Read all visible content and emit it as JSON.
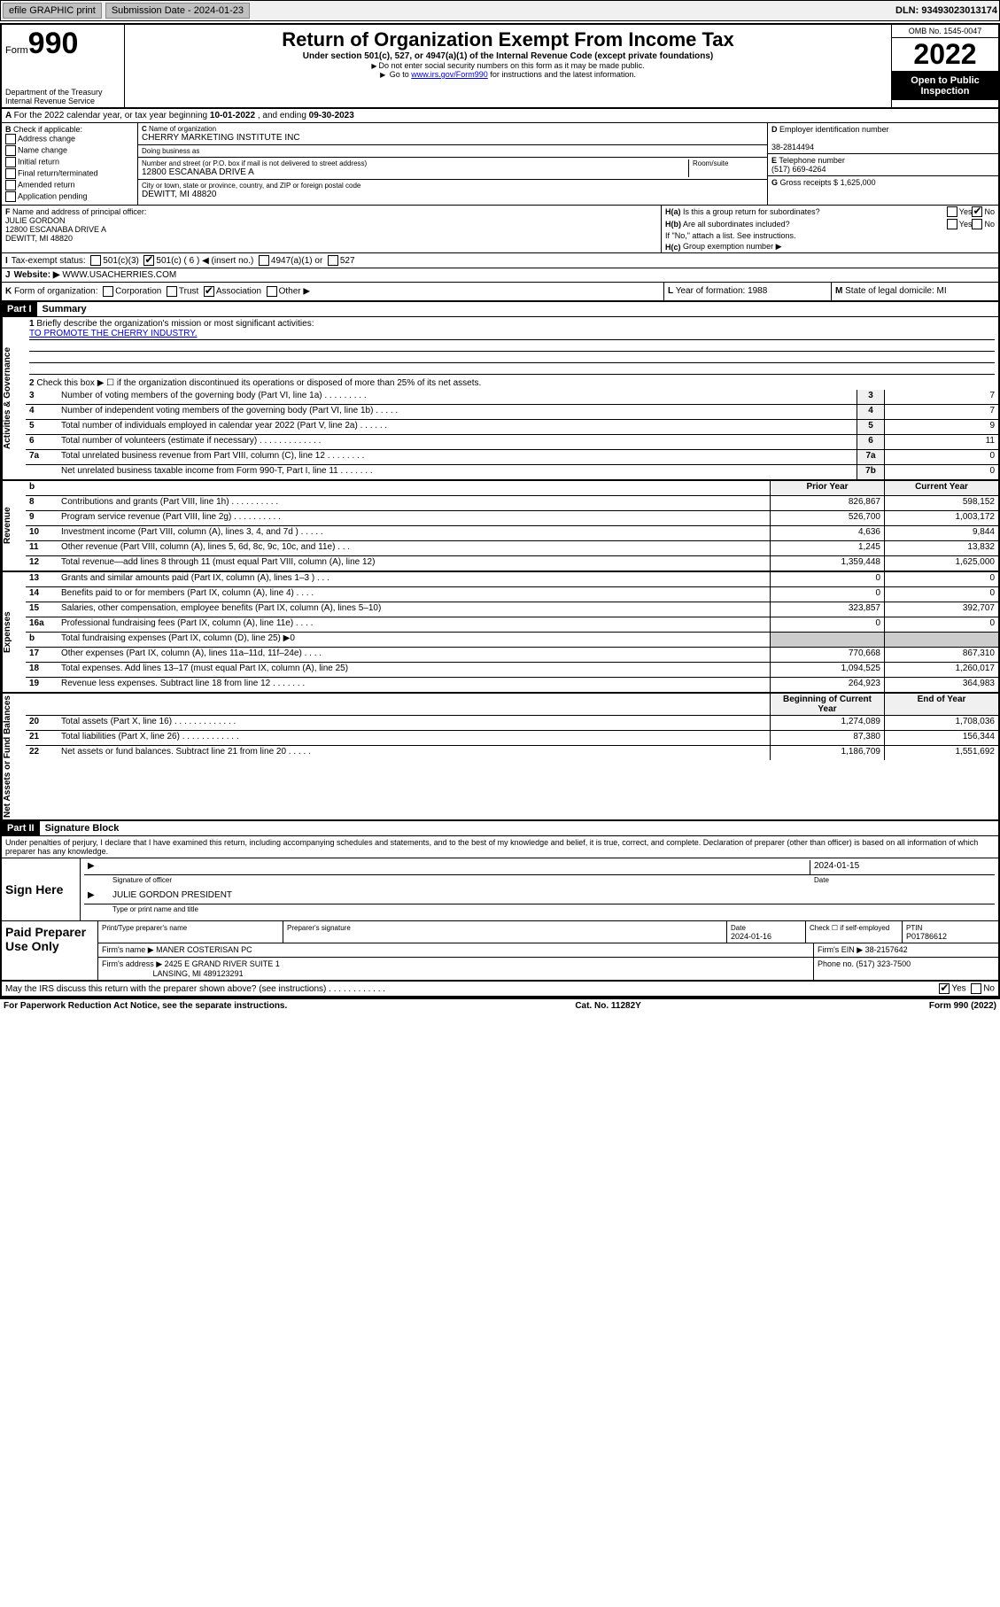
{
  "topbar": {
    "efile": "efile GRAPHIC print",
    "submission_label": "Submission Date - ",
    "submission_date": "2024-01-23",
    "dln_label": "DLN: ",
    "dln": "93493023013174"
  },
  "header": {
    "form_label": "Form",
    "form_number": "990",
    "dept": "Department of the Treasury\nInternal Revenue Service",
    "title": "Return of Organization Exempt From Income Tax",
    "subtitle": "Under section 501(c), 527, or 4947(a)(1) of the Internal Revenue Code (except private foundations)",
    "warn1": "Do not enter social security numbers on this form as it may be made public.",
    "warn2_pre": "Go to ",
    "warn2_link": "www.irs.gov/Form990",
    "warn2_post": " for instructions and the latest information.",
    "omb": "OMB No. 1545-0047",
    "year": "2022",
    "open": "Open to Public Inspection"
  },
  "row_a": {
    "text": "For the 2022 calendar year, or tax year beginning ",
    "begin": "10-01-2022",
    "mid": " , and ending ",
    "end": "09-30-2023"
  },
  "col_b": {
    "label": "Check if applicable:",
    "items": [
      "Address change",
      "Name change",
      "Initial return",
      "Final return/terminated",
      "Amended return",
      "Application pending"
    ]
  },
  "col_c": {
    "name_label": "Name of organization",
    "name": "CHERRY MARKETING INSTITUTE INC",
    "dba_label": "Doing business as",
    "dba": "",
    "street_label": "Number and street (or P.O. box if mail is not delivered to street address)",
    "room_label": "Room/suite",
    "street": "12800 ESCANABA DRIVE A",
    "city_label": "City or town, state or province, country, and ZIP or foreign postal code",
    "city": "DEWITT, MI  48820"
  },
  "col_d": {
    "ein_label": "Employer identification number",
    "ein": "38-2814494",
    "tel_label": "Telephone number",
    "tel": "(517) 669-4264",
    "gross_label": "Gross receipts $ ",
    "gross": "1,625,000"
  },
  "col_f": {
    "label": "Name and address of principal officer:",
    "name": "JULIE GORDON",
    "addr1": "12800 ESCANABA DRIVE A",
    "addr2": "DEWITT, MI  48820"
  },
  "col_h": {
    "ha_label": "Is this a group return for subordinates?",
    "ha_yes": "Yes",
    "ha_no": "No",
    "hb_label": "Are all subordinates included?",
    "hb_yes": "Yes",
    "hb_no": "No",
    "hb_note": "If \"No,\" attach a list. See instructions.",
    "hc_label": "Group exemption number ▶"
  },
  "row_i": {
    "lead": "I",
    "label": "Tax-exempt status:",
    "opts": [
      "501(c)(3)",
      "501(c) ( 6 ) ◀ (insert no.)",
      "4947(a)(1) or",
      "527"
    ],
    "checked_index": 1
  },
  "row_j": {
    "lead": "J",
    "label": "Website: ▶",
    "value": "WWW.USACHERRIES.COM"
  },
  "row_k": {
    "lead": "K",
    "label": "Form of organization:",
    "opts": [
      "Corporation",
      "Trust",
      "Association",
      "Other ▶"
    ],
    "checked_index": 2
  },
  "row_l": {
    "label": "Year of formation: ",
    "value": "1988"
  },
  "row_m": {
    "label": "State of legal domicile: ",
    "value": "MI"
  },
  "part1": {
    "hdr": "Part I",
    "title": "Summary",
    "line1_label": "Briefly describe the organization's mission or most significant activities:",
    "line1_value": "TO PROMOTE THE CHERRY INDUSTRY.",
    "line2": "Check this box ▶ ☐  if the organization discontinued its operations or disposed of more than 25% of its net assets.",
    "section_gov": "Activities & Governance",
    "section_rev": "Revenue",
    "section_exp": "Expenses",
    "section_net": "Net Assets or Fund Balances",
    "hdr_prior": "Prior Year",
    "hdr_current": "Current Year",
    "hdr_begin": "Beginning of Current Year",
    "hdr_end": "End of Year",
    "gov_lines": [
      {
        "n": "3",
        "d": "Number of voting members of the governing body (Part VI, line 1a)  .   .   .   .   .   .   .   .   .",
        "b": "3",
        "v": "7"
      },
      {
        "n": "4",
        "d": "Number of independent voting members of the governing body (Part VI, line 1b)   .   .   .   .   .",
        "b": "4",
        "v": "7"
      },
      {
        "n": "5",
        "d": "Total number of individuals employed in calendar year 2022 (Part V, line 2a)   .   .   .   .   .   .",
        "b": "5",
        "v": "9"
      },
      {
        "n": "6",
        "d": "Total number of volunteers (estimate if necessary)   .   .   .   .   .   .   .   .   .   .   .   .   .",
        "b": "6",
        "v": "11"
      },
      {
        "n": "7a",
        "d": "Total unrelated business revenue from Part VIII, column (C), line 12   .   .   .   .   .   .   .   .",
        "b": "7a",
        "v": "0"
      },
      {
        "n": "",
        "d": "Net unrelated business taxable income from Form 990-T, Part I, line 11   .   .   .   .   .   .   .",
        "b": "7b",
        "v": "0"
      }
    ],
    "rev_lines": [
      {
        "n": "8",
        "d": "Contributions and grants (Part VIII, line 1h)   .   .   .   .   .   .   .   .   .   .",
        "p": "826,867",
        "c": "598,152"
      },
      {
        "n": "9",
        "d": "Program service revenue (Part VIII, line 2g)   .   .   .   .   .   .   .   .   .   .",
        "p": "526,700",
        "c": "1,003,172"
      },
      {
        "n": "10",
        "d": "Investment income (Part VIII, column (A), lines 3, 4, and 7d )   .   .   .   .   .",
        "p": "4,636",
        "c": "9,844"
      },
      {
        "n": "11",
        "d": "Other revenue (Part VIII, column (A), lines 5, 6d, 8c, 9c, 10c, and 11e)   .   .   .",
        "p": "1,245",
        "c": "13,832"
      },
      {
        "n": "12",
        "d": "Total revenue—add lines 8 through 11 (must equal Part VIII, column (A), line 12)",
        "p": "1,359,448",
        "c": "1,625,000"
      }
    ],
    "exp_lines": [
      {
        "n": "13",
        "d": "Grants and similar amounts paid (Part IX, column (A), lines 1–3 )   .   .   .",
        "p": "0",
        "c": "0"
      },
      {
        "n": "14",
        "d": "Benefits paid to or for members (Part IX, column (A), line 4)   .   .   .   .",
        "p": "0",
        "c": "0"
      },
      {
        "n": "15",
        "d": "Salaries, other compensation, employee benefits (Part IX, column (A), lines 5–10)",
        "p": "323,857",
        "c": "392,707"
      },
      {
        "n": "16a",
        "d": "Professional fundraising fees (Part IX, column (A), line 11e)   .   .   .   .",
        "p": "0",
        "c": "0"
      },
      {
        "n": "b",
        "d": "Total fundraising expenses (Part IX, column (D), line 25) ▶0",
        "p": "",
        "c": "",
        "shade": true
      },
      {
        "n": "17",
        "d": "Other expenses (Part IX, column (A), lines 11a–11d, 11f–24e)   .   .   .   .",
        "p": "770,668",
        "c": "867,310"
      },
      {
        "n": "18",
        "d": "Total expenses. Add lines 13–17 (must equal Part IX, column (A), line 25)",
        "p": "1,094,525",
        "c": "1,260,017"
      },
      {
        "n": "19",
        "d": "Revenue less expenses. Subtract line 18 from line 12   .   .   .   .   .   .   .",
        "p": "264,923",
        "c": "364,983"
      }
    ],
    "net_lines": [
      {
        "n": "20",
        "d": "Total assets (Part X, line 16)   .   .   .   .   .   .   .   .   .   .   .   .   .",
        "p": "1,274,089",
        "c": "1,708,036"
      },
      {
        "n": "21",
        "d": "Total liabilities (Part X, line 26)   .   .   .   .   .   .   .   .   .   .   .   .",
        "p": "87,380",
        "c": "156,344"
      },
      {
        "n": "22",
        "d": "Net assets or fund balances. Subtract line 21 from line 20   .   .   .   .   .",
        "p": "1,186,709",
        "c": "1,551,692"
      }
    ]
  },
  "part2": {
    "hdr": "Part II",
    "title": "Signature Block",
    "penalties": "Under penalties of perjury, I declare that I have examined this return, including accompanying schedules and statements, and to the best of my knowledge and belief, it is true, correct, and complete. Declaration of preparer (other than officer) is based on all information of which preparer has any knowledge.",
    "sign_here": "Sign Here",
    "sig_officer_label": "Signature of officer",
    "sig_date_label": "Date",
    "sig_date": "2024-01-15",
    "officer_name": "JULIE GORDON PRESIDENT",
    "officer_name_label": "Type or print name and title",
    "paid_label": "Paid Preparer Use Only",
    "prep_name_label": "Print/Type preparer's name",
    "prep_sig_label": "Preparer's signature",
    "prep_date_label": "Date",
    "prep_date": "2024-01-16",
    "prep_check_label": "Check ☐ if self-employed",
    "ptin_label": "PTIN",
    "ptin": "P01786612",
    "firm_name_label": "Firm's name    ▶ ",
    "firm_name": "MANER COSTERISAN PC",
    "firm_ein_label": "Firm's EIN ▶ ",
    "firm_ein": "38-2157642",
    "firm_addr_label": "Firm's address ▶ ",
    "firm_addr1": "2425 E GRAND RIVER SUITE 1",
    "firm_addr2": "LANSING, MI  489123291",
    "firm_phone_label": "Phone no. ",
    "firm_phone": "(517) 323-7500",
    "discuss": "May the IRS discuss this return with the preparer shown above? (see instructions)   .   .   .   .   .   .   .   .   .   .   .   .",
    "discuss_yes": "Yes",
    "discuss_no": "No"
  },
  "footer": {
    "left": "For Paperwork Reduction Act Notice, see the separate instructions.",
    "mid": "Cat. No. 11282Y",
    "right": "Form 990 (2022)"
  }
}
